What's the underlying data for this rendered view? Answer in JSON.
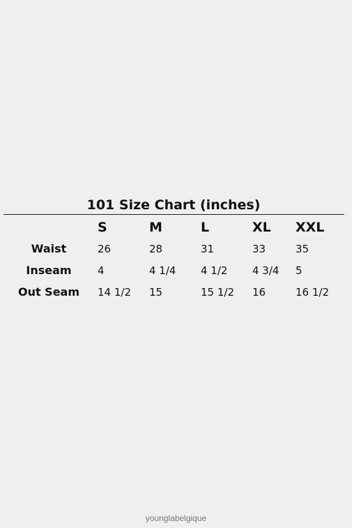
{
  "chart_title": "101 Size Chart (inches)",
  "columns": [
    "S",
    "M",
    "L",
    "XL",
    "XXL"
  ],
  "rows": [
    {
      "label": "Waist",
      "values": [
        "26",
        "28",
        "31",
        "33",
        "35"
      ]
    },
    {
      "label": "Inseam",
      "values": [
        "4",
        "4 1/4",
        "4 1/2",
        "4 3/4",
        "5"
      ]
    },
    {
      "label": "Out Seam",
      "values": [
        "14 1/2",
        "15",
        "15 1/2",
        "16",
        "16 1/2"
      ]
    }
  ],
  "footer": "younglabelgique"
}
